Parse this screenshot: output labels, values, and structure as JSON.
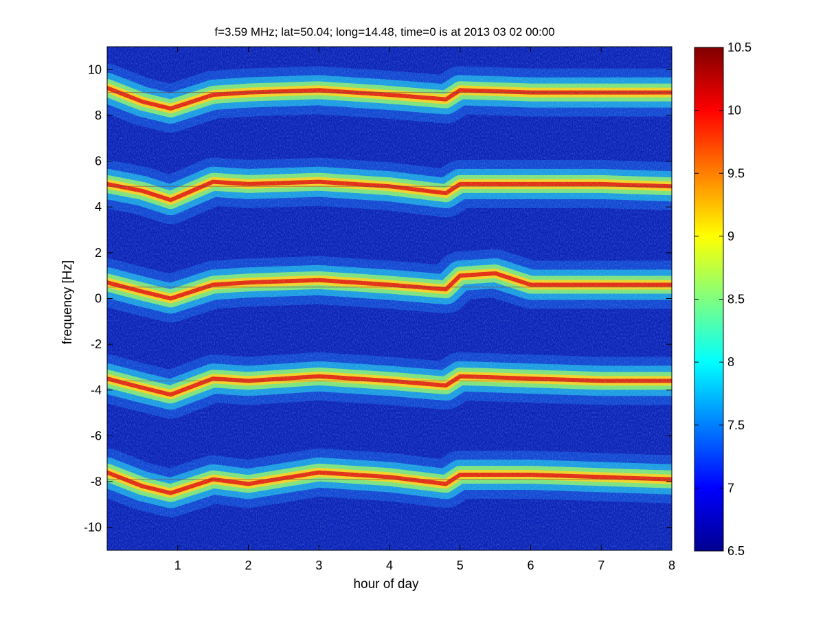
{
  "chart_data": {
    "type": "heatmap",
    "title": "f=3.59 MHz;  lat=50.04; long=14.48, time=0 is at 2013 03 02 00:00",
    "xlabel": "hour of day",
    "ylabel": "frequency [Hz]",
    "xlim": [
      0,
      8
    ],
    "ylim": [
      -11,
      11
    ],
    "x_ticks": [
      1,
      2,
      3,
      4,
      5,
      6,
      7,
      8
    ],
    "x_tick_labels": [
      "1",
      "2",
      "3",
      "4",
      "5",
      "6",
      "7",
      "8"
    ],
    "y_ticks": [
      -10,
      -8,
      -6,
      -4,
      -2,
      0,
      2,
      4,
      6,
      8,
      10
    ],
    "y_tick_labels": [
      "-10",
      "-8",
      "-6",
      "-4",
      "-2",
      "0",
      "2",
      "4",
      "6",
      "8",
      "10"
    ],
    "colorbar": {
      "range": [
        6.5,
        10.5
      ],
      "ticks": [
        6.5,
        7,
        7.5,
        8,
        8.5,
        9,
        9.5,
        10,
        10.5
      ],
      "tick_labels": [
        "6.5",
        "7",
        "7.5",
        "8",
        "8.5",
        "9",
        "9.5",
        "10",
        "10.5"
      ],
      "colormap": "jet"
    },
    "bands": [
      {
        "center_hz": 9.0,
        "track": [
          [
            0,
            9.2
          ],
          [
            0.5,
            8.6
          ],
          [
            0.9,
            8.3
          ],
          [
            1.5,
            8.9
          ],
          [
            2,
            9.0
          ],
          [
            3,
            9.1
          ],
          [
            4,
            8.9
          ],
          [
            4.8,
            8.7
          ],
          [
            5,
            9.1
          ],
          [
            6,
            9.0
          ],
          [
            7,
            9.0
          ],
          [
            8,
            9.0
          ]
        ]
      },
      {
        "center_hz": 4.9,
        "track": [
          [
            0,
            5.0
          ],
          [
            0.5,
            4.7
          ],
          [
            0.9,
            4.3
          ],
          [
            1.5,
            5.1
          ],
          [
            2,
            5.0
          ],
          [
            3,
            5.1
          ],
          [
            4,
            4.9
          ],
          [
            4.8,
            4.6
          ],
          [
            5,
            5.0
          ],
          [
            6,
            5.0
          ],
          [
            7,
            5.0
          ],
          [
            8,
            4.9
          ]
        ]
      },
      {
        "center_hz": 0.5,
        "track": [
          [
            0,
            0.7
          ],
          [
            0.5,
            0.3
          ],
          [
            0.9,
            0.0
          ],
          [
            1.5,
            0.6
          ],
          [
            2,
            0.7
          ],
          [
            3,
            0.8
          ],
          [
            4,
            0.6
          ],
          [
            4.8,
            0.4
          ],
          [
            5,
            1.0
          ],
          [
            5.5,
            1.1
          ],
          [
            6,
            0.6
          ],
          [
            7,
            0.6
          ],
          [
            8,
            0.6
          ]
        ]
      },
      {
        "center_hz": -3.6,
        "track": [
          [
            0,
            -3.5
          ],
          [
            0.5,
            -3.9
          ],
          [
            0.9,
            -4.2
          ],
          [
            1.5,
            -3.5
          ],
          [
            2,
            -3.6
          ],
          [
            3,
            -3.4
          ],
          [
            4,
            -3.6
          ],
          [
            4.8,
            -3.8
          ],
          [
            5,
            -3.4
          ],
          [
            6,
            -3.5
          ],
          [
            7,
            -3.6
          ],
          [
            8,
            -3.6
          ]
        ]
      },
      {
        "center_hz": -7.9,
        "track": [
          [
            0,
            -7.6
          ],
          [
            0.5,
            -8.2
          ],
          [
            0.9,
            -8.5
          ],
          [
            1.5,
            -7.9
          ],
          [
            2,
            -8.1
          ],
          [
            3,
            -7.6
          ],
          [
            4,
            -7.8
          ],
          [
            4.8,
            -8.1
          ],
          [
            5,
            -7.7
          ],
          [
            6,
            -7.7
          ],
          [
            7,
            -7.8
          ],
          [
            8,
            -7.9
          ]
        ]
      }
    ]
  }
}
